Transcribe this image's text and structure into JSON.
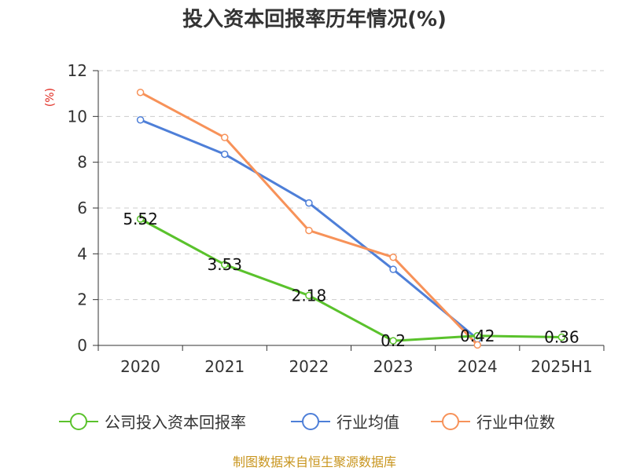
{
  "chart_data": {
    "type": "line",
    "title": "投入资本回报率历年情况(%)",
    "ylabel": "(%)",
    "xlabel": "",
    "categories": [
      "2020",
      "2021",
      "2022",
      "2023",
      "2024",
      "2025H1"
    ],
    "ylim": [
      0,
      12
    ],
    "yticks": [
      0,
      2,
      4,
      6,
      8,
      10,
      12
    ],
    "grid": true,
    "legend_position": "bottom",
    "series": [
      {
        "name": "公司投入资本回报率",
        "color": "#5ac22c",
        "values": [
          5.52,
          3.53,
          2.18,
          0.2,
          0.42,
          0.36
        ],
        "labels": [
          "5.52",
          "3.53",
          "2.18",
          "0.2",
          "0.42",
          "0.36"
        ]
      },
      {
        "name": "行业均值",
        "color": "#4e7fd8",
        "values": [
          9.85,
          8.35,
          6.22,
          3.32,
          0.28,
          null
        ]
      },
      {
        "name": "行业中位数",
        "color": "#f79259",
        "values": [
          11.05,
          9.08,
          5.02,
          3.85,
          0.02,
          null
        ]
      }
    ]
  },
  "source": "制图数据来自恒生聚源数据库",
  "colors": {
    "ylabel": "#e0281e",
    "source": "#c8951e",
    "axis": "#333333",
    "grid": "#cccccc"
  }
}
